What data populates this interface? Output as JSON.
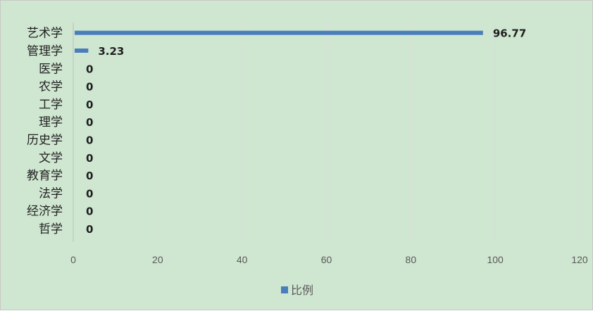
{
  "chart_data": {
    "type": "bar",
    "orientation": "horizontal",
    "categories": [
      "艺术学",
      "管理学",
      "医学",
      "农学",
      "工学",
      "理学",
      "历史学",
      "文学",
      "教育学",
      "法学",
      "经济学",
      "哲学"
    ],
    "series": [
      {
        "name": "比例",
        "values": [
          96.77,
          3.23,
          0,
          0,
          0,
          0,
          0,
          0,
          0,
          0,
          0,
          0
        ]
      }
    ],
    "data_labels": [
      "96.77",
      "3.23",
      "0",
      "0",
      "0",
      "0",
      "0",
      "0",
      "0",
      "0",
      "0",
      "0"
    ],
    "x_ticks": [
      "0",
      "20",
      "40",
      "60",
      "80",
      "100",
      "120"
    ],
    "xlim": [
      0,
      120
    ],
    "grid": "vertical",
    "legend_position": "bottom",
    "bar_color": "#4a7ebb",
    "background_color": "#cfe6d1",
    "title": "",
    "xlabel": "",
    "ylabel": ""
  }
}
